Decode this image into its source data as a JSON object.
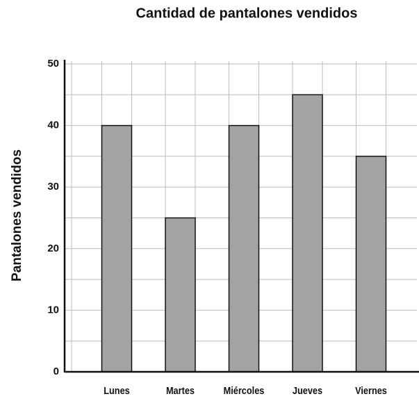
{
  "chart_data": {
    "type": "bar",
    "title": "Cantidad de pantalones vendidos",
    "ylabel": "Pantalones vendidos",
    "categories": [
      "Lunes",
      "Martes",
      "Miércoles",
      "Jueves",
      "Viernes"
    ],
    "values": [
      40,
      25,
      40,
      45,
      35
    ],
    "color": "#a3a3a3",
    "ylim": [
      0,
      50
    ],
    "yticks": [
      0,
      10,
      20,
      30,
      40,
      50
    ],
    "minor_yticks": [
      5,
      15,
      25,
      35,
      45
    ],
    "grid": true
  }
}
